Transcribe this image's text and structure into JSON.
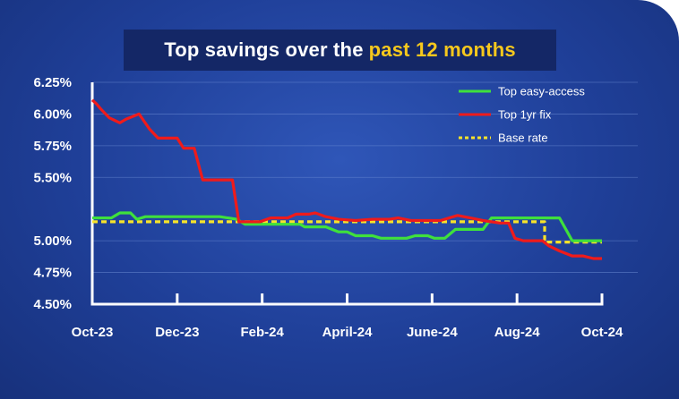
{
  "title": {
    "main": "Top savings over the",
    "highlight": "past 12 months"
  },
  "colors": {
    "easy_access": "#3fe03c",
    "one_year_fix": "#ef1b1b",
    "base_rate": "#f7e32a",
    "highlight": "#f6c81d"
  },
  "chart_data": {
    "type": "line",
    "title": "Top savings over the past 12 months",
    "xlabel": "",
    "ylabel": "",
    "x_ticks": [
      {
        "label": "Oct-23",
        "x": 0
      },
      {
        "label": "Dec-23",
        "x": 2
      },
      {
        "label": "Feb-24",
        "x": 4
      },
      {
        "label": "April-24",
        "x": 6
      },
      {
        "label": "June-24",
        "x": 8
      },
      {
        "label": "Aug-24",
        "x": 10
      },
      {
        "label": "Oct-24",
        "x": 12
      }
    ],
    "xlim": [
      0,
      12
    ],
    "y_ticks": [
      "6.25%",
      "6.00%",
      "5.75%",
      "5.50%",
      "5.00%",
      "4.75%",
      "4.50%"
    ],
    "y_tick_values": [
      6.25,
      6.0,
      5.75,
      5.5,
      5.0,
      4.75,
      4.5
    ],
    "ylim": [
      4.5,
      6.25
    ],
    "grid": "horizontal",
    "legend_position": "top-right",
    "series": [
      {
        "name": "Top easy-access",
        "color_key": "easy_access",
        "style": "solid",
        "points": [
          [
            0.0,
            5.18
          ],
          [
            0.45,
            5.18
          ],
          [
            0.65,
            5.22
          ],
          [
            0.9,
            5.22
          ],
          [
            1.05,
            5.17
          ],
          [
            1.25,
            5.19
          ],
          [
            2.0,
            5.19
          ],
          [
            2.6,
            5.19
          ],
          [
            3.0,
            5.19
          ],
          [
            3.4,
            5.17
          ],
          [
            3.6,
            5.13
          ],
          [
            4.0,
            5.13
          ],
          [
            4.6,
            5.13
          ],
          [
            4.9,
            5.13
          ],
          [
            5.0,
            5.11
          ],
          [
            5.5,
            5.11
          ],
          [
            5.8,
            5.07
          ],
          [
            6.0,
            5.07
          ],
          [
            6.2,
            5.04
          ],
          [
            6.6,
            5.04
          ],
          [
            6.8,
            5.02
          ],
          [
            7.4,
            5.02
          ],
          [
            7.6,
            5.04
          ],
          [
            7.9,
            5.04
          ],
          [
            8.05,
            5.02
          ],
          [
            8.3,
            5.02
          ],
          [
            8.55,
            5.09
          ],
          [
            9.2,
            5.09
          ],
          [
            9.4,
            5.18
          ],
          [
            10.7,
            5.18
          ],
          [
            11.0,
            5.18
          ],
          [
            11.3,
            5.0
          ],
          [
            12.0,
            5.0
          ]
        ]
      },
      {
        "name": "Top 1yr fix",
        "color_key": "one_year_fix",
        "style": "solid",
        "points": [
          [
            0.0,
            6.11
          ],
          [
            0.1,
            6.08
          ],
          [
            0.2,
            6.04
          ],
          [
            0.4,
            5.97
          ],
          [
            0.65,
            5.93
          ],
          [
            0.8,
            5.96
          ],
          [
            1.1,
            6.0
          ],
          [
            1.35,
            5.88
          ],
          [
            1.55,
            5.81
          ],
          [
            2.0,
            5.81
          ],
          [
            2.15,
            5.73
          ],
          [
            2.4,
            5.73
          ],
          [
            2.6,
            5.48
          ],
          [
            3.3,
            5.48
          ],
          [
            3.45,
            5.15
          ],
          [
            3.95,
            5.15
          ],
          [
            4.2,
            5.18
          ],
          [
            4.6,
            5.18
          ],
          [
            4.8,
            5.21
          ],
          [
            5.1,
            5.21
          ],
          [
            5.25,
            5.22
          ],
          [
            5.5,
            5.19
          ],
          [
            5.8,
            5.17
          ],
          [
            6.2,
            5.16
          ],
          [
            6.6,
            5.17
          ],
          [
            7.0,
            5.17
          ],
          [
            7.2,
            5.18
          ],
          [
            7.5,
            5.16
          ],
          [
            7.8,
            5.16
          ],
          [
            8.2,
            5.16
          ],
          [
            8.6,
            5.2
          ],
          [
            8.9,
            5.18
          ],
          [
            9.2,
            5.16
          ],
          [
            9.6,
            5.14
          ],
          [
            9.8,
            5.14
          ],
          [
            9.95,
            5.02
          ],
          [
            10.15,
            5.0
          ],
          [
            10.6,
            5.0
          ],
          [
            10.75,
            4.96
          ],
          [
            11.0,
            4.92
          ],
          [
            11.3,
            4.88
          ],
          [
            11.55,
            4.88
          ],
          [
            11.8,
            4.86
          ],
          [
            12.0,
            4.86
          ]
        ]
      },
      {
        "name": "Base rate",
        "color_key": "base_rate",
        "style": "dotted",
        "points": [
          [
            0.0,
            5.15
          ],
          [
            10.65,
            5.15
          ],
          [
            10.65,
            4.99
          ],
          [
            12.0,
            4.99
          ]
        ]
      }
    ]
  }
}
